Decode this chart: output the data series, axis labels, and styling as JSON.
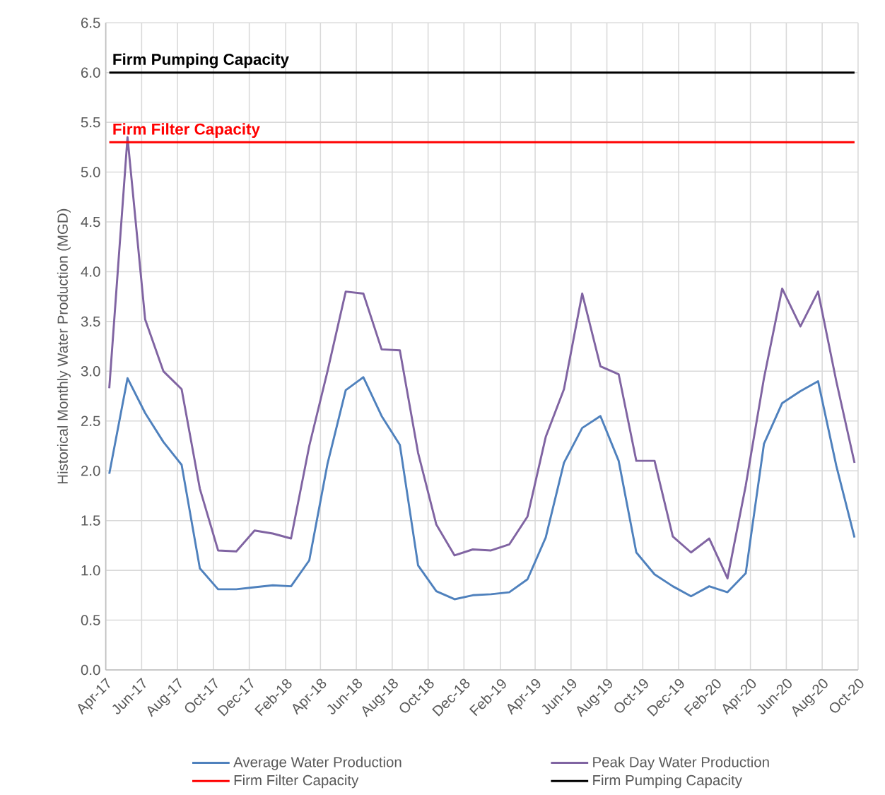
{
  "chart_data": {
    "type": "line",
    "ylabel": "Historical Monthly Water Production (MGD)",
    "x": [
      "2017-04-07",
      "2017-05-08",
      "2017-06-07",
      "2017-07-08",
      "2017-08-08",
      "2017-09-08",
      "2017-10-09",
      "2017-11-09",
      "2017-12-10",
      "2018-01-10",
      "2018-02-10",
      "2018-03-13",
      "2018-04-13",
      "2018-05-14",
      "2018-06-13",
      "2018-07-14",
      "2018-08-14",
      "2018-09-14",
      "2018-10-15",
      "2018-11-15",
      "2018-12-16",
      "2019-01-16",
      "2019-02-16",
      "2019-03-19",
      "2019-04-19",
      "2019-05-20",
      "2019-06-20",
      "2019-07-21",
      "2019-08-21",
      "2019-09-20",
      "2019-10-21",
      "2019-11-21",
      "2019-12-22",
      "2020-01-22",
      "2020-02-22",
      "2020-03-24",
      "2020-04-24",
      "2020-05-25",
      "2020-06-25",
      "2020-07-25",
      "2020-08-25",
      "2020-09-25"
    ],
    "series": [
      {
        "name": "Average Water Production",
        "color": "#4f81bd",
        "values": [
          1.97,
          2.93,
          2.58,
          2.29,
          2.06,
          1.02,
          0.81,
          0.81,
          0.83,
          0.85,
          0.84,
          1.1,
          2.07,
          2.81,
          2.94,
          2.55,
          2.26,
          1.05,
          0.79,
          0.71,
          0.75,
          0.76,
          0.78,
          0.91,
          1.33,
          2.08,
          2.43,
          2.55,
          2.1,
          1.18,
          0.96,
          0.84,
          0.74,
          0.84,
          0.78,
          0.97,
          2.27,
          2.68,
          2.8,
          2.9,
          2.05,
          1.33
        ]
      },
      {
        "name": "Peak Day Water Production",
        "color": "#8064a2",
        "values": [
          2.83,
          5.35,
          3.52,
          3.0,
          2.82,
          1.82,
          1.2,
          1.19,
          1.4,
          1.37,
          1.32,
          2.25,
          3.0,
          3.8,
          3.78,
          3.22,
          3.21,
          2.18,
          1.46,
          1.15,
          1.21,
          1.2,
          1.26,
          1.54,
          2.34,
          2.82,
          3.78,
          3.05,
          2.97,
          2.1,
          2.1,
          1.34,
          1.18,
          1.32,
          0.92,
          1.85,
          2.93,
          3.83,
          3.45,
          3.8,
          2.9,
          2.08
        ]
      },
      {
        "name": "Firm Filter Capacity",
        "color": "#ff0000",
        "x": [
          "2017-04-07",
          "2020-09-25"
        ],
        "values": [
          5.3,
          5.3
        ]
      },
      {
        "name": "Firm Pumping Capacity",
        "color": "#000000",
        "x": [
          "2017-04-07",
          "2020-09-25"
        ],
        "values": [
          6.0,
          6.0
        ]
      }
    ],
    "annotations": [
      {
        "text": "Firm Pumping Capacity",
        "x": "2017-04-07",
        "y": 6.0
      },
      {
        "text": "Firm Filter Capacity",
        "x": "2017-04-07",
        "y": 5.3
      }
    ],
    "xlim": [
      "2017-04-01",
      "2020-10-01"
    ],
    "xticks": [
      {
        "value": "2017-04-01",
        "label": "Apr-17"
      },
      {
        "value": "2017-06-01",
        "label": "Jun-17"
      },
      {
        "value": "2017-08-01",
        "label": "Aug-17"
      },
      {
        "value": "2017-10-01",
        "label": "Oct-17"
      },
      {
        "value": "2017-12-01",
        "label": "Dec-17"
      },
      {
        "value": "2018-02-01",
        "label": "Feb-18"
      },
      {
        "value": "2018-04-01",
        "label": "Apr-18"
      },
      {
        "value": "2018-06-01",
        "label": "Jun-18"
      },
      {
        "value": "2018-08-01",
        "label": "Aug-18"
      },
      {
        "value": "2018-10-01",
        "label": "Oct-18"
      },
      {
        "value": "2018-12-01",
        "label": "Dec-18"
      },
      {
        "value": "2019-02-01",
        "label": "Feb-19"
      },
      {
        "value": "2019-04-01",
        "label": "Apr-19"
      },
      {
        "value": "2019-06-01",
        "label": "Jun-19"
      },
      {
        "value": "2019-08-01",
        "label": "Aug-19"
      },
      {
        "value": "2019-10-01",
        "label": "Oct-19"
      },
      {
        "value": "2019-12-01",
        "label": "Dec-19"
      },
      {
        "value": "2020-02-01",
        "label": "Feb-20"
      },
      {
        "value": "2020-04-01",
        "label": "Apr-20"
      },
      {
        "value": "2020-06-01",
        "label": "Jun-20"
      },
      {
        "value": "2020-08-01",
        "label": "Aug-20"
      },
      {
        "value": "2020-10-01",
        "label": "Oct-20"
      }
    ],
    "ylim": [
      0,
      6.5
    ],
    "yticks": [
      {
        "value": 0,
        "label": "0.0"
      },
      0.5,
      {
        "value": 1,
        "label": "1.0"
      },
      1.5,
      {
        "value": 2,
        "label": "2.0"
      },
      2.5,
      {
        "value": 3,
        "label": "3.0"
      },
      3.5,
      {
        "value": 4,
        "label": "4.0"
      },
      4.5,
      {
        "value": 5,
        "label": "5.0"
      },
      5.5,
      {
        "value": 6,
        "label": "6.0"
      },
      6.5
    ],
    "grid": true,
    "legend": "bottom",
    "marker": "none",
    "line_style": "solid"
  }
}
